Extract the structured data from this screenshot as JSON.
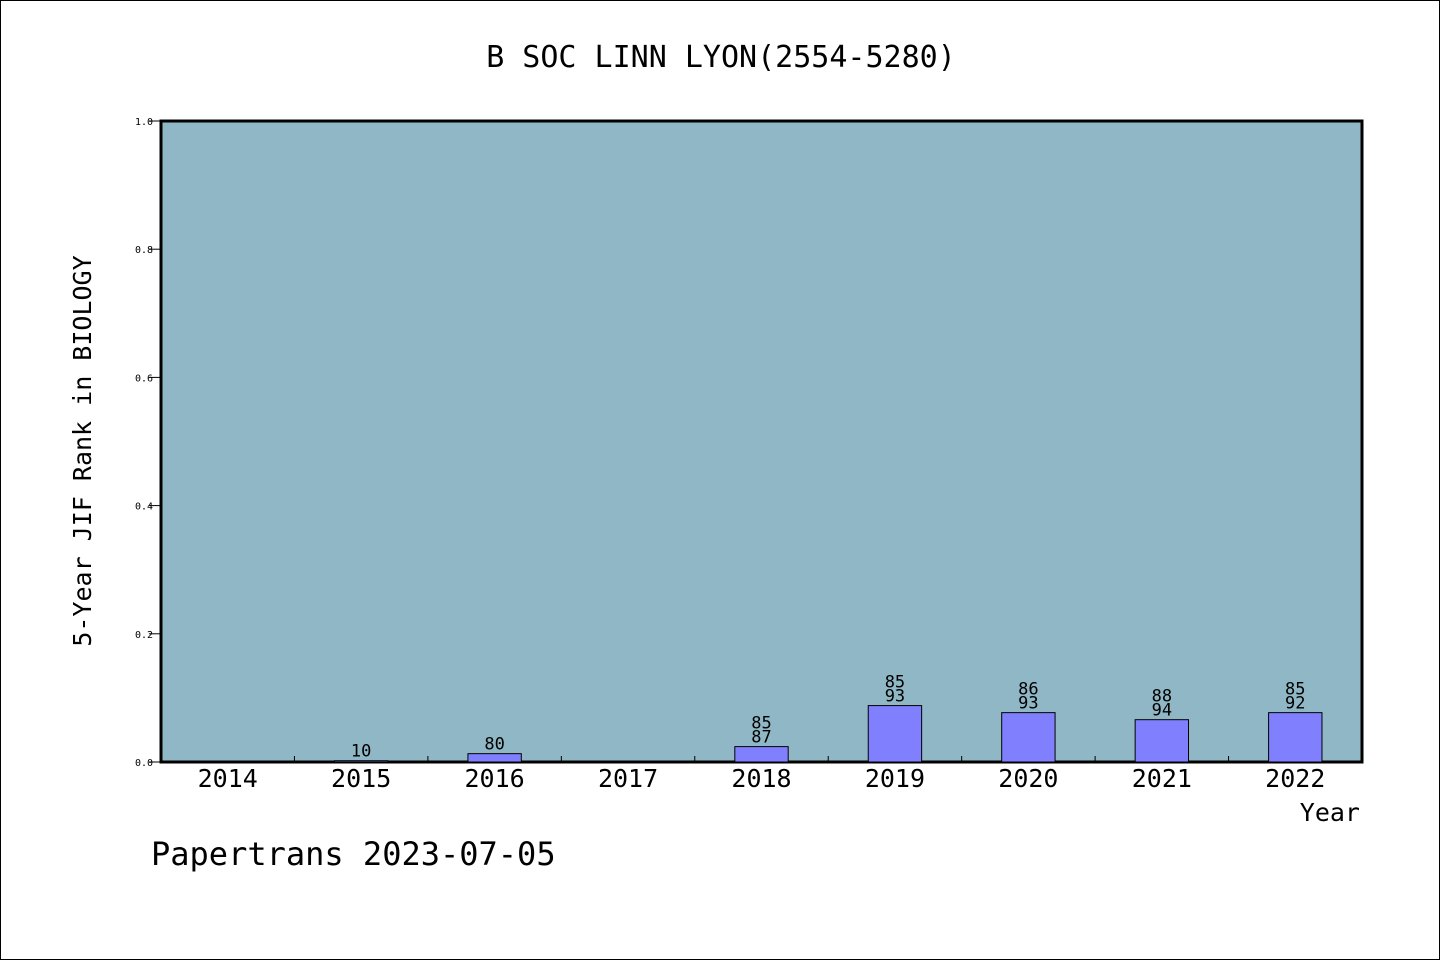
{
  "chart_data": {
    "type": "bar",
    "title": "B SOC LINN LYON(2554-5280)",
    "xlabel": "Year",
    "ylabel": "5-Year JIF Rank in BIOLOGY",
    "ylim": [
      0,
      1.0
    ],
    "yticks": [
      "0.0",
      "0.2",
      "0.4",
      "0.6",
      "0.8",
      "1.0"
    ],
    "categories": [
      "2014",
      "2015",
      "2016",
      "2017",
      "2018",
      "2019",
      "2020",
      "2021",
      "2022"
    ],
    "values": [
      null,
      0.002,
      0.013,
      null,
      0.024,
      0.088,
      0.077,
      0.066,
      0.077
    ],
    "label_top": [
      null,
      null,
      null,
      null,
      "85",
      "85",
      "86",
      "88",
      "85"
    ],
    "label_bottom": [
      null,
      "10",
      "80",
      null,
      "87",
      "93",
      "93",
      "94",
      "92"
    ],
    "grid": false,
    "colors": {
      "plot_bg": "#8fb7c5",
      "bar": "#8080ff",
      "frame": "#000000"
    }
  },
  "footer": {
    "watermark": "Papertrans 2023-07-05"
  }
}
